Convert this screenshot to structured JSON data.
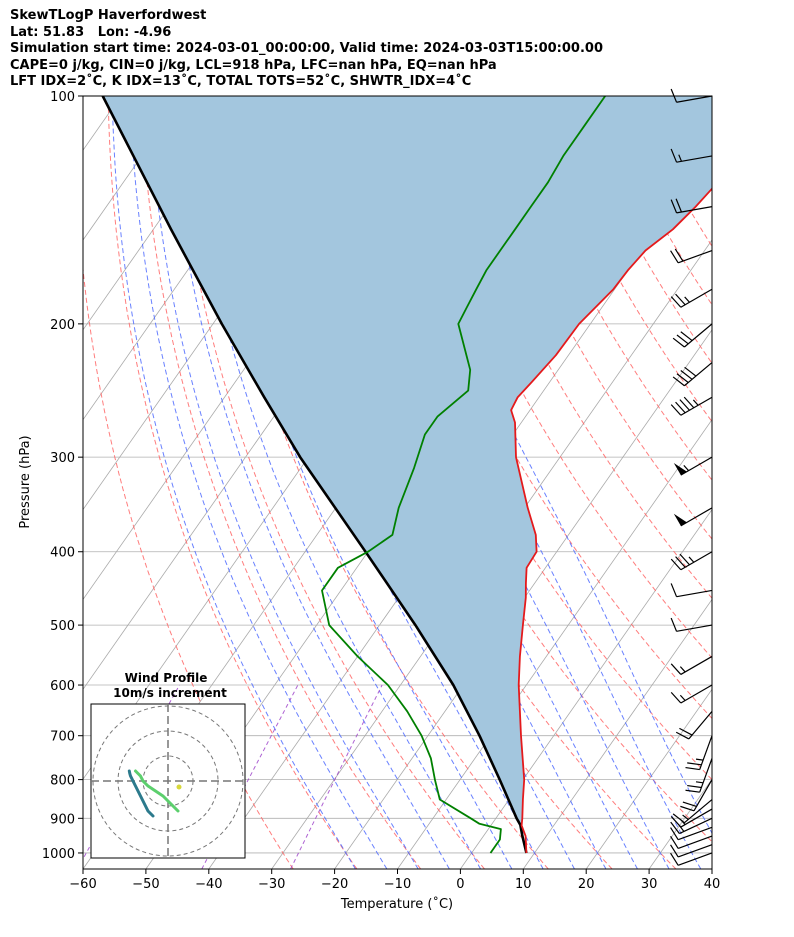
{
  "header": {
    "line1": "SkewTLogP Haverfordwest",
    "line2": "Lat: 51.83   Lon: -4.96",
    "line3": "Simulation start time: 2024-03-01_00:00:00, Valid time: 2024-03-03T15:00:00.00",
    "line4": "CAPE=0 j/kg, CIN=0 j/kg, LCL=918 hPa, LFC=nan hPa, EQ=nan hPa",
    "line5": "LFT IDX=2˚C, K IDX=13˚C, TOTAL TOTS=52˚C, SHWTR_IDX=4˚C"
  },
  "chart_data": {
    "type": "skewt",
    "xlabel": "Temperature (˚C)",
    "ylabel": "Pressure (hPa)",
    "xlim": [
      -60,
      40
    ],
    "ylim": [
      1050,
      100
    ],
    "x_ticks": [
      -60,
      -50,
      -40,
      -30,
      -20,
      -10,
      0,
      10,
      20,
      30,
      40
    ],
    "y_ticks": [
      1000,
      900,
      800,
      700,
      600,
      500,
      400,
      300,
      200,
      100
    ],
    "y_scale": "log",
    "grid": true,
    "colors": {
      "temperature": "#e41a1c",
      "dewpoint": "#008000",
      "parcel": "#000000",
      "cape_fill": "#a3c6de",
      "dry_adiabats": "#ff6666",
      "moist_adiabats": "#4f6bff",
      "mixing_ratio": "#9a3cc8",
      "isotherms": "#aaaaaa"
    },
    "temperature": {
      "pressure": [
        1000,
        950,
        920,
        900,
        850,
        800,
        700,
        600,
        550,
        500,
        460,
        440,
        420,
        400,
        380,
        350,
        300,
        270,
        260,
        250,
        240,
        220,
        200,
        180,
        170,
        160,
        150,
        140,
        130,
        120,
        110,
        100
      ],
      "value": [
        8.7,
        6.7,
        4.9,
        4.2,
        2.2,
        0.2,
        -5.2,
        -11.2,
        -14.2,
        -17.2,
        -19.8,
        -21.4,
        -23.0,
        -23.2,
        -25.2,
        -29.5,
        -37.0,
        -41.0,
        -43.0,
        -43.4,
        -42.9,
        -42.0,
        -41.8,
        -40.2,
        -40.0,
        -39.4,
        -37.4,
        -36.3,
        -35.5,
        -34.9,
        -34.6,
        -33.8
      ]
    },
    "dewpoint": {
      "pressure": [
        1000,
        960,
        930,
        915,
        900,
        850,
        800,
        750,
        700,
        650,
        600,
        550,
        500,
        450,
        420,
        400,
        380,
        350,
        310,
        280,
        265,
        245,
        230,
        200,
        190,
        180,
        170,
        160,
        150,
        140,
        130,
        120,
        110,
        100
      ],
      "value": [
        3.0,
        3.0,
        2.0,
        -2.0,
        -4.0,
        -11.0,
        -14.0,
        -17.0,
        -21.0,
        -26.0,
        -32.0,
        -40.0,
        -48.0,
        -53.0,
        -53.0,
        -50.0,
        -48.0,
        -50.0,
        -52.0,
        -54.0,
        -54.0,
        -52.0,
        -54.0,
        -61.0,
        -61.5,
        -62.0,
        -62.5,
        -62.5,
        -62.5,
        -62.5,
        -62.5,
        -63.0,
        -63.0,
        -63.0
      ]
    },
    "parcel": {
      "pressure": [
        1000,
        950,
        918,
        900,
        850,
        800,
        700,
        600,
        500,
        400,
        300,
        250,
        200,
        150,
        100
      ],
      "value": [
        8.7,
        6.2,
        4.6,
        3.3,
        -0.1,
        -3.7,
        -11.8,
        -21.6,
        -34.3,
        -50.4,
        -71.3,
        -83.7,
        -98.6,
        -117.2,
        -142.9
      ]
    },
    "wind_barbs": {
      "pressure": [
        1000,
        975,
        950,
        925,
        900,
        875,
        850,
        800,
        750,
        700,
        650,
        600,
        550,
        500,
        450,
        400,
        350,
        300,
        250,
        225,
        200,
        180,
        160,
        140,
        120,
        100
      ],
      "speed_kt": [
        10,
        10,
        10,
        10,
        15,
        15,
        15,
        20,
        25,
        25,
        20,
        15,
        15,
        10,
        10,
        35,
        50,
        55,
        45,
        40,
        30,
        25,
        20,
        20,
        15,
        10
      ],
      "direction_deg": [
        250,
        250,
        250,
        250,
        245,
        240,
        230,
        210,
        200,
        200,
        220,
        240,
        240,
        260,
        260,
        240,
        240,
        240,
        240,
        230,
        230,
        240,
        250,
        260,
        260,
        260
      ]
    },
    "hodograph": {
      "title": "Wind Profile",
      "subtitle": "10m/s increment",
      "u": [
        -6,
        -8,
        -9,
        -10,
        -11,
        -12,
        -13,
        -14,
        -14.5,
        -15,
        -15.3,
        -15.5
      ],
      "v": [
        -14,
        -12,
        -10,
        -8,
        -6,
        -4,
        -2,
        0,
        1,
        2,
        3,
        4
      ],
      "u2": [
        4,
        2,
        0,
        -2,
        -5,
        -8,
        -10,
        -11,
        -12,
        -13
      ],
      "v2": [
        -12,
        -10,
        -8,
        -6,
        -4,
        -2,
        0,
        2,
        3,
        4
      ]
    }
  }
}
